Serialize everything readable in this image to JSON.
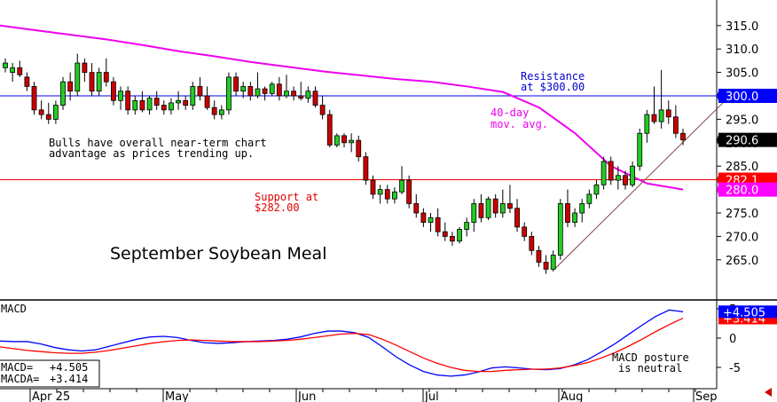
{
  "chart_data": [
    {
      "type": "candlestick",
      "title": "September Soybean Meal",
      "ylim": [
        260,
        318
      ],
      "y_ticks": [
        "315.0",
        "310.0",
        "305.0",
        "300.0",
        "295.0",
        "290.0",
        "285.0",
        "280.0",
        "275.0",
        "270.0",
        "265.0"
      ],
      "x_ticks": [
        "Apr 25",
        "May",
        "Jun",
        "Jul",
        "Aug",
        "Sep"
      ],
      "grid": false,
      "price_labels": {
        "resistance": "300.0",
        "last": "290.6",
        "support": "282.1",
        "moving_average": "280.0"
      },
      "levels": {
        "resistance": 300.0,
        "support": 282.1,
        "moving_average_end": 280.0
      },
      "annotations": {
        "resistance": [
          "Resistance",
          "at $300.00"
        ],
        "support": [
          "Support at",
          "$282.00"
        ],
        "moving_average": [
          "40-day",
          "mov. avg."
        ],
        "comment": [
          "Bulls have overall near-term chart",
          "advantage as prices trending up."
        ]
      },
      "moving_average_40day": [
        315.0,
        314.0,
        313.0,
        312.0,
        310.8,
        309.5,
        308.4,
        307.2,
        306.2,
        305.2,
        304.4,
        303.6,
        303.0,
        302.0,
        300.8,
        297.5,
        292.0,
        285.0,
        281.3,
        280.0
      ],
      "trendline": {
        "from": [
          263.0
        ],
        "to": [
          298.5
        ]
      },
      "candles": [
        {
          "o": 306,
          "h": 308,
          "l": 305,
          "c": 307
        },
        {
          "o": 305,
          "h": 307,
          "l": 303,
          "c": 306
        },
        {
          "o": 306,
          "h": 307.5,
          "l": 304,
          "c": 304.5
        },
        {
          "o": 304,
          "h": 305,
          "l": 301,
          "c": 302
        },
        {
          "o": 302,
          "h": 303,
          "l": 296,
          "c": 297
        },
        {
          "o": 297,
          "h": 299,
          "l": 295,
          "c": 296
        },
        {
          "o": 296,
          "h": 298.5,
          "l": 294,
          "c": 295
        },
        {
          "o": 295,
          "h": 299,
          "l": 294,
          "c": 298
        },
        {
          "o": 298,
          "h": 304,
          "l": 297,
          "c": 303
        },
        {
          "o": 303,
          "h": 305,
          "l": 299,
          "c": 301
        },
        {
          "o": 301,
          "h": 309,
          "l": 300,
          "c": 307
        },
        {
          "o": 307,
          "h": 308,
          "l": 303,
          "c": 305
        },
        {
          "o": 305,
          "h": 307,
          "l": 300,
          "c": 301
        },
        {
          "o": 301,
          "h": 306,
          "l": 300,
          "c": 305
        },
        {
          "o": 305,
          "h": 308,
          "l": 302,
          "c": 303
        },
        {
          "o": 303,
          "h": 304,
          "l": 298,
          "c": 299
        },
        {
          "o": 299,
          "h": 302,
          "l": 297,
          "c": 301
        },
        {
          "o": 301,
          "h": 302,
          "l": 296,
          "c": 297
        },
        {
          "o": 297,
          "h": 300,
          "l": 296,
          "c": 299
        },
        {
          "o": 299,
          "h": 301,
          "l": 296.5,
          "c": 297
        },
        {
          "o": 297,
          "h": 300,
          "l": 296,
          "c": 299.5
        },
        {
          "o": 299.5,
          "h": 301,
          "l": 297,
          "c": 298
        },
        {
          "o": 298,
          "h": 299,
          "l": 296,
          "c": 297
        },
        {
          "o": 297,
          "h": 299.5,
          "l": 296,
          "c": 298.5
        },
        {
          "o": 298.5,
          "h": 301,
          "l": 297,
          "c": 299
        },
        {
          "o": 299,
          "h": 300,
          "l": 297,
          "c": 298
        },
        {
          "o": 298,
          "h": 303,
          "l": 297,
          "c": 302
        },
        {
          "o": 302,
          "h": 304,
          "l": 299,
          "c": 300
        },
        {
          "o": 300,
          "h": 302,
          "l": 297,
          "c": 297.5
        },
        {
          "o": 297.5,
          "h": 299,
          "l": 295,
          "c": 296
        },
        {
          "o": 296,
          "h": 298,
          "l": 295,
          "c": 297
        },
        {
          "o": 297,
          "h": 305,
          "l": 296,
          "c": 304
        },
        {
          "o": 304,
          "h": 305,
          "l": 300,
          "c": 301
        },
        {
          "o": 301,
          "h": 303,
          "l": 299.5,
          "c": 302
        },
        {
          "o": 302,
          "h": 303,
          "l": 299,
          "c": 300
        },
        {
          "o": 300,
          "h": 305,
          "l": 299.5,
          "c": 301.5
        },
        {
          "o": 301.5,
          "h": 302,
          "l": 299,
          "c": 300.5
        },
        {
          "o": 300.5,
          "h": 303,
          "l": 300,
          "c": 302.5
        },
        {
          "o": 302.5,
          "h": 304,
          "l": 299,
          "c": 300
        },
        {
          "o": 300,
          "h": 304.5,
          "l": 299.5,
          "c": 301
        },
        {
          "o": 301,
          "h": 302,
          "l": 299,
          "c": 300
        },
        {
          "o": 300,
          "h": 303,
          "l": 299,
          "c": 299.5
        },
        {
          "o": 299.5,
          "h": 302,
          "l": 298.5,
          "c": 301
        },
        {
          "o": 301,
          "h": 302,
          "l": 297.5,
          "c": 298
        },
        {
          "o": 298,
          "h": 300,
          "l": 295,
          "c": 296
        },
        {
          "o": 296,
          "h": 297,
          "l": 289,
          "c": 289.5
        },
        {
          "o": 289.5,
          "h": 292,
          "l": 289,
          "c": 291.5
        },
        {
          "o": 291.5,
          "h": 292,
          "l": 289,
          "c": 290
        },
        {
          "o": 290,
          "h": 292,
          "l": 288,
          "c": 290.5
        },
        {
          "o": 290.5,
          "h": 291.5,
          "l": 286,
          "c": 287
        },
        {
          "o": 287,
          "h": 288,
          "l": 281,
          "c": 282
        },
        {
          "o": 282,
          "h": 283,
          "l": 278,
          "c": 279
        },
        {
          "o": 279,
          "h": 281,
          "l": 277,
          "c": 280
        },
        {
          "o": 280,
          "h": 281,
          "l": 277,
          "c": 278
        },
        {
          "o": 278,
          "h": 280.5,
          "l": 277,
          "c": 279.5
        },
        {
          "o": 279.5,
          "h": 285,
          "l": 279,
          "c": 282
        },
        {
          "o": 282,
          "h": 283,
          "l": 276,
          "c": 277
        },
        {
          "o": 277,
          "h": 279,
          "l": 274,
          "c": 275
        },
        {
          "o": 275,
          "h": 276,
          "l": 272,
          "c": 273
        },
        {
          "o": 273,
          "h": 275,
          "l": 271,
          "c": 274
        },
        {
          "o": 274,
          "h": 276,
          "l": 270,
          "c": 271
        },
        {
          "o": 271,
          "h": 273,
          "l": 269,
          "c": 270
        },
        {
          "o": 270,
          "h": 271,
          "l": 268,
          "c": 269
        },
        {
          "o": 269,
          "h": 272,
          "l": 268.5,
          "c": 271.5
        },
        {
          "o": 271.5,
          "h": 274,
          "l": 270,
          "c": 273
        },
        {
          "o": 273,
          "h": 278,
          "l": 271,
          "c": 277
        },
        {
          "o": 277,
          "h": 279,
          "l": 273,
          "c": 274
        },
        {
          "o": 274,
          "h": 278.5,
          "l": 273.5,
          "c": 278
        },
        {
          "o": 278,
          "h": 279,
          "l": 274,
          "c": 275
        },
        {
          "o": 275,
          "h": 280,
          "l": 274,
          "c": 277
        },
        {
          "o": 277,
          "h": 281,
          "l": 275,
          "c": 276
        },
        {
          "o": 276,
          "h": 278,
          "l": 271,
          "c": 272
        },
        {
          "o": 272,
          "h": 273,
          "l": 269,
          "c": 270
        },
        {
          "o": 270,
          "h": 271,
          "l": 266,
          "c": 267
        },
        {
          "o": 267,
          "h": 268,
          "l": 263.5,
          "c": 264.5
        },
        {
          "o": 264.5,
          "h": 266,
          "l": 262,
          "c": 263
        },
        {
          "o": 263,
          "h": 267,
          "l": 262.5,
          "c": 266
        },
        {
          "o": 266,
          "h": 278,
          "l": 265,
          "c": 277
        },
        {
          "o": 277,
          "h": 280,
          "l": 272,
          "c": 273
        },
        {
          "o": 273,
          "h": 276,
          "l": 272,
          "c": 275
        },
        {
          "o": 275,
          "h": 278,
          "l": 273,
          "c": 277
        },
        {
          "o": 277,
          "h": 280,
          "l": 276,
          "c": 279
        },
        {
          "o": 279,
          "h": 282,
          "l": 278,
          "c": 281
        },
        {
          "o": 281,
          "h": 287,
          "l": 280,
          "c": 286
        },
        {
          "o": 286,
          "h": 287,
          "l": 281,
          "c": 282
        },
        {
          "o": 282,
          "h": 285,
          "l": 280,
          "c": 283
        },
        {
          "o": 283,
          "h": 284,
          "l": 280,
          "c": 281
        },
        {
          "o": 281,
          "h": 286,
          "l": 280.5,
          "c": 285
        },
        {
          "o": 285,
          "h": 293,
          "l": 284,
          "c": 292
        },
        {
          "o": 292,
          "h": 297,
          "l": 290,
          "c": 296
        },
        {
          "o": 296,
          "h": 302,
          "l": 294,
          "c": 294.5
        },
        {
          "o": 294.5,
          "h": 305.5,
          "l": 293,
          "c": 297
        },
        {
          "o": 297,
          "h": 299,
          "l": 294,
          "c": 295.5
        },
        {
          "o": 295.5,
          "h": 298,
          "l": 291,
          "c": 292
        },
        {
          "o": 292,
          "h": 293,
          "l": 289.5,
          "c": 290.6
        }
      ]
    },
    {
      "type": "line",
      "title": "MACD",
      "ylim": [
        -8.5,
        6
      ],
      "y_ticks": [
        "5",
        "0",
        "-5"
      ],
      "labels": {
        "macd_value": "+4.505",
        "macda_value": "+3.414"
      },
      "legend": {
        "macd_label": "MACD=",
        "macd_value": "+4.505",
        "macda_label": "MACDA=",
        "macda_value": "+3.414"
      },
      "annotation": [
        "MACD posture",
        "is neutral"
      ],
      "series": [
        {
          "name": "MACD",
          "color": "#0000ff",
          "values": [
            -0.5,
            -0.6,
            -0.6,
            -1.0,
            -1.6,
            -2.0,
            -2.2,
            -2.0,
            -1.4,
            -0.8,
            -0.2,
            0.2,
            0.3,
            0.1,
            -0.4,
            -0.8,
            -0.9,
            -0.8,
            -0.6,
            -0.5,
            -0.4,
            -0.2,
            0.2,
            0.8,
            1.2,
            1.2,
            0.9,
            0.1,
            -1.5,
            -3.2,
            -4.6,
            -5.7,
            -6.3,
            -6.5,
            -6.3,
            -5.8,
            -5.1,
            -4.9,
            -5.1,
            -5.3,
            -5.4,
            -5.2,
            -4.6,
            -3.7,
            -2.4,
            -1.0,
            0.6,
            2.2,
            3.7,
            4.8,
            4.5
          ]
        },
        {
          "name": "MACDA",
          "color": "#ff0000",
          "values": [
            -1.5,
            -1.8,
            -2.1,
            -2.3,
            -2.5,
            -2.6,
            -2.6,
            -2.4,
            -2.1,
            -1.7,
            -1.3,
            -0.9,
            -0.6,
            -0.4,
            -0.3,
            -0.4,
            -0.5,
            -0.6,
            -0.6,
            -0.6,
            -0.5,
            -0.4,
            -0.2,
            0.1,
            0.4,
            0.7,
            0.8,
            0.6,
            -0.2,
            -1.2,
            -2.3,
            -3.4,
            -4.3,
            -5.0,
            -5.5,
            -5.7,
            -5.7,
            -5.5,
            -5.4,
            -5.3,
            -5.3,
            -5.1,
            -4.7,
            -4.2,
            -3.4,
            -2.5,
            -1.4,
            -0.2,
            1.1,
            2.3,
            3.4
          ]
        }
      ]
    }
  ]
}
